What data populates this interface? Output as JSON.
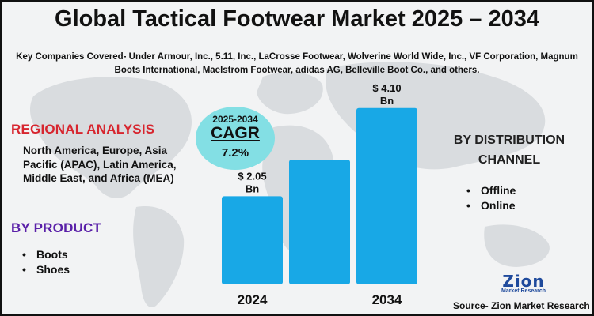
{
  "title": "Global Tactical Footwear Market 2025 – 2034",
  "companies": "Key Companies Covered- Under Armour, Inc., 5.11, Inc., LaCrosse Footwear, Wolverine World Wide, Inc., VF Corporation, Magnum Boots International, Maelstrom Footwear, adidas AG, Belleville Boot Co., and others.",
  "regional": {
    "heading": "REGIONAL ANALYSIS",
    "text": "North America, Europe, Asia Pacific (APAC), Latin America, Middle East, and Africa (MEA)"
  },
  "product": {
    "heading": "BY PRODUCT",
    "items": [
      "Boots",
      "Shoes"
    ]
  },
  "distribution": {
    "heading": "BY DISTRIBUTION CHANNEL",
    "items": [
      "Offline",
      "Online"
    ]
  },
  "cagr": {
    "period": "2025-2034",
    "label": "CAGR",
    "value": "7.2%"
  },
  "chart_data": {
    "type": "bar",
    "categories": [
      "2024",
      "",
      "2034"
    ],
    "values": [
      2.05,
      2.9,
      4.1
    ],
    "data_labels": [
      "$ 2.05",
      "",
      "$ 4.10"
    ],
    "unit_labels": [
      "Bn",
      "",
      "Bn"
    ],
    "unit": "Bn USD",
    "title": "",
    "xlabel": "",
    "ylabel": "",
    "ylim": [
      0,
      4.5
    ],
    "grid": false,
    "bar_color": "#18a8e6"
  },
  "logo": {
    "word": "Zion",
    "sub": "Market.Research"
  },
  "source": "Source- Zion Market Research",
  "colors": {
    "regional_heading": "#d7262f",
    "product_heading": "#5a20a8",
    "cagr_circle": "#83dfe4",
    "bar": "#18a8e6"
  }
}
